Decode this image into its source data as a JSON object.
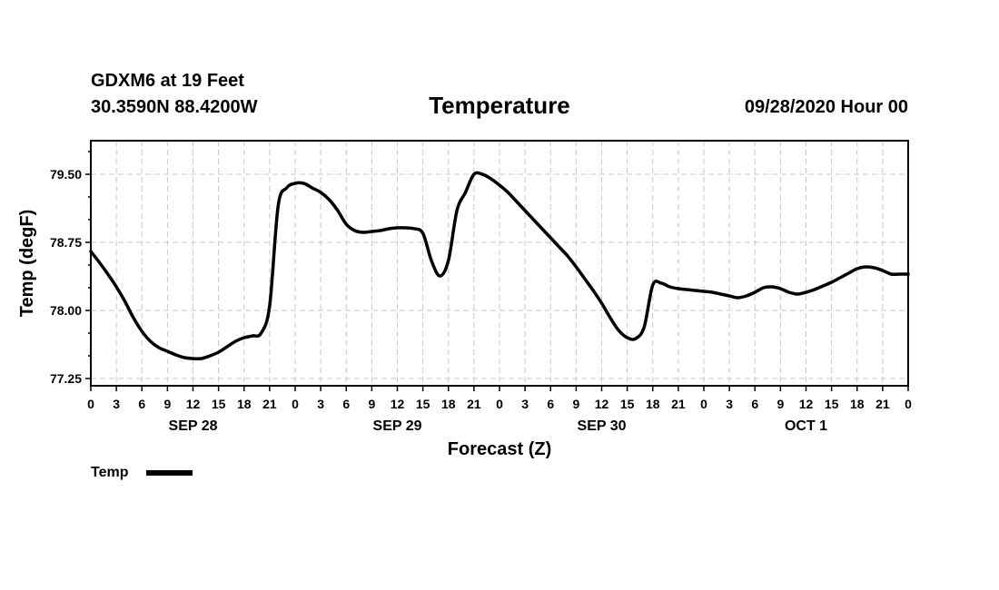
{
  "header": {
    "station": "GDXM6 at 19 Feet",
    "coords": "30.3590N 88.4200W",
    "datetime": "09/28/2020 Hour 00"
  },
  "colors": {
    "line": "#000000",
    "grid": "#c8c8c8",
    "axis": "#000000"
  },
  "chart_data": {
    "type": "line",
    "title": "Temperature",
    "xlabel": "Forecast (Z)",
    "ylabel": "Temp (degF)",
    "ylim": [
      77.17,
      79.87
    ],
    "xlim": [
      0,
      96
    ],
    "y_ticks": [
      77.25,
      78.0,
      78.75,
      79.5
    ],
    "y_tick_labels": [
      "77.25",
      "78.00",
      "78.75",
      "79.50"
    ],
    "x_ticks": [
      0,
      3,
      6,
      9,
      12,
      15,
      18,
      21,
      24,
      27,
      30,
      33,
      36,
      39,
      42,
      45,
      48,
      51,
      54,
      57,
      60,
      63,
      66,
      69,
      72,
      75,
      78,
      81,
      84,
      87,
      90,
      93,
      96
    ],
    "x_tick_labels": [
      "0",
      "3",
      "6",
      "9",
      "12",
      "15",
      "18",
      "21",
      "0",
      "3",
      "6",
      "9",
      "12",
      "15",
      "18",
      "21",
      "0",
      "3",
      "6",
      "9",
      "12",
      "15",
      "18",
      "21",
      "0",
      "3",
      "6",
      "9",
      "12",
      "15",
      "18",
      "21",
      "0"
    ],
    "day_labels": [
      {
        "label": "SEP 28",
        "x": 12
      },
      {
        "label": "SEP 29",
        "x": 36
      },
      {
        "label": "SEP 30",
        "x": 60
      },
      {
        "label": "OCT 1",
        "x": 84
      }
    ],
    "grid": true,
    "legend_position": "bottom-left",
    "series": [
      {
        "name": "Temp",
        "x": [
          0,
          1,
          2,
          3,
          4,
          5,
          6,
          7,
          8,
          9,
          10,
          11,
          12,
          13,
          14,
          15,
          16,
          17,
          18,
          19,
          20,
          21,
          22,
          23,
          24,
          25,
          26,
          27,
          28,
          29,
          30,
          31,
          32,
          33,
          34,
          35,
          36,
          37,
          38,
          39,
          40,
          41,
          42,
          43,
          44,
          45,
          46,
          47,
          48,
          49,
          50,
          51,
          52,
          53,
          54,
          55,
          56,
          57,
          58,
          59,
          60,
          61,
          62,
          63,
          64,
          65,
          66,
          67,
          68,
          69,
          70,
          71,
          72,
          73,
          74,
          75,
          76,
          77,
          78,
          79,
          80,
          81,
          82,
          83,
          84,
          85,
          86,
          87,
          88,
          89,
          90,
          91,
          92,
          93,
          94,
          95,
          96
        ],
        "values": [
          78.65,
          78.53,
          78.4,
          78.26,
          78.1,
          77.92,
          77.77,
          77.66,
          77.59,
          77.55,
          77.51,
          77.48,
          77.47,
          77.47,
          77.5,
          77.54,
          77.6,
          77.66,
          77.7,
          77.72,
          77.75,
          78.05,
          79.15,
          79.35,
          79.4,
          79.4,
          79.35,
          79.3,
          79.22,
          79.1,
          78.95,
          78.88,
          78.86,
          78.87,
          78.88,
          78.9,
          78.91,
          78.91,
          78.9,
          78.85,
          78.55,
          78.38,
          78.55,
          79.1,
          79.3,
          79.5,
          79.5,
          79.45,
          79.38,
          79.3,
          79.2,
          79.1,
          79.0,
          78.9,
          78.8,
          78.7,
          78.6,
          78.48,
          78.35,
          78.22,
          78.08,
          77.92,
          77.78,
          77.7,
          77.69,
          77.82,
          78.28,
          78.3,
          78.26,
          78.24,
          78.23,
          78.22,
          78.21,
          78.2,
          78.18,
          78.16,
          78.14,
          78.16,
          78.2,
          78.25,
          78.26,
          78.24,
          78.2,
          78.18,
          78.2,
          78.23,
          78.27,
          78.31,
          78.36,
          78.41,
          78.46,
          78.48,
          78.47,
          78.44,
          78.4,
          78.4,
          78.4
        ]
      }
    ]
  }
}
